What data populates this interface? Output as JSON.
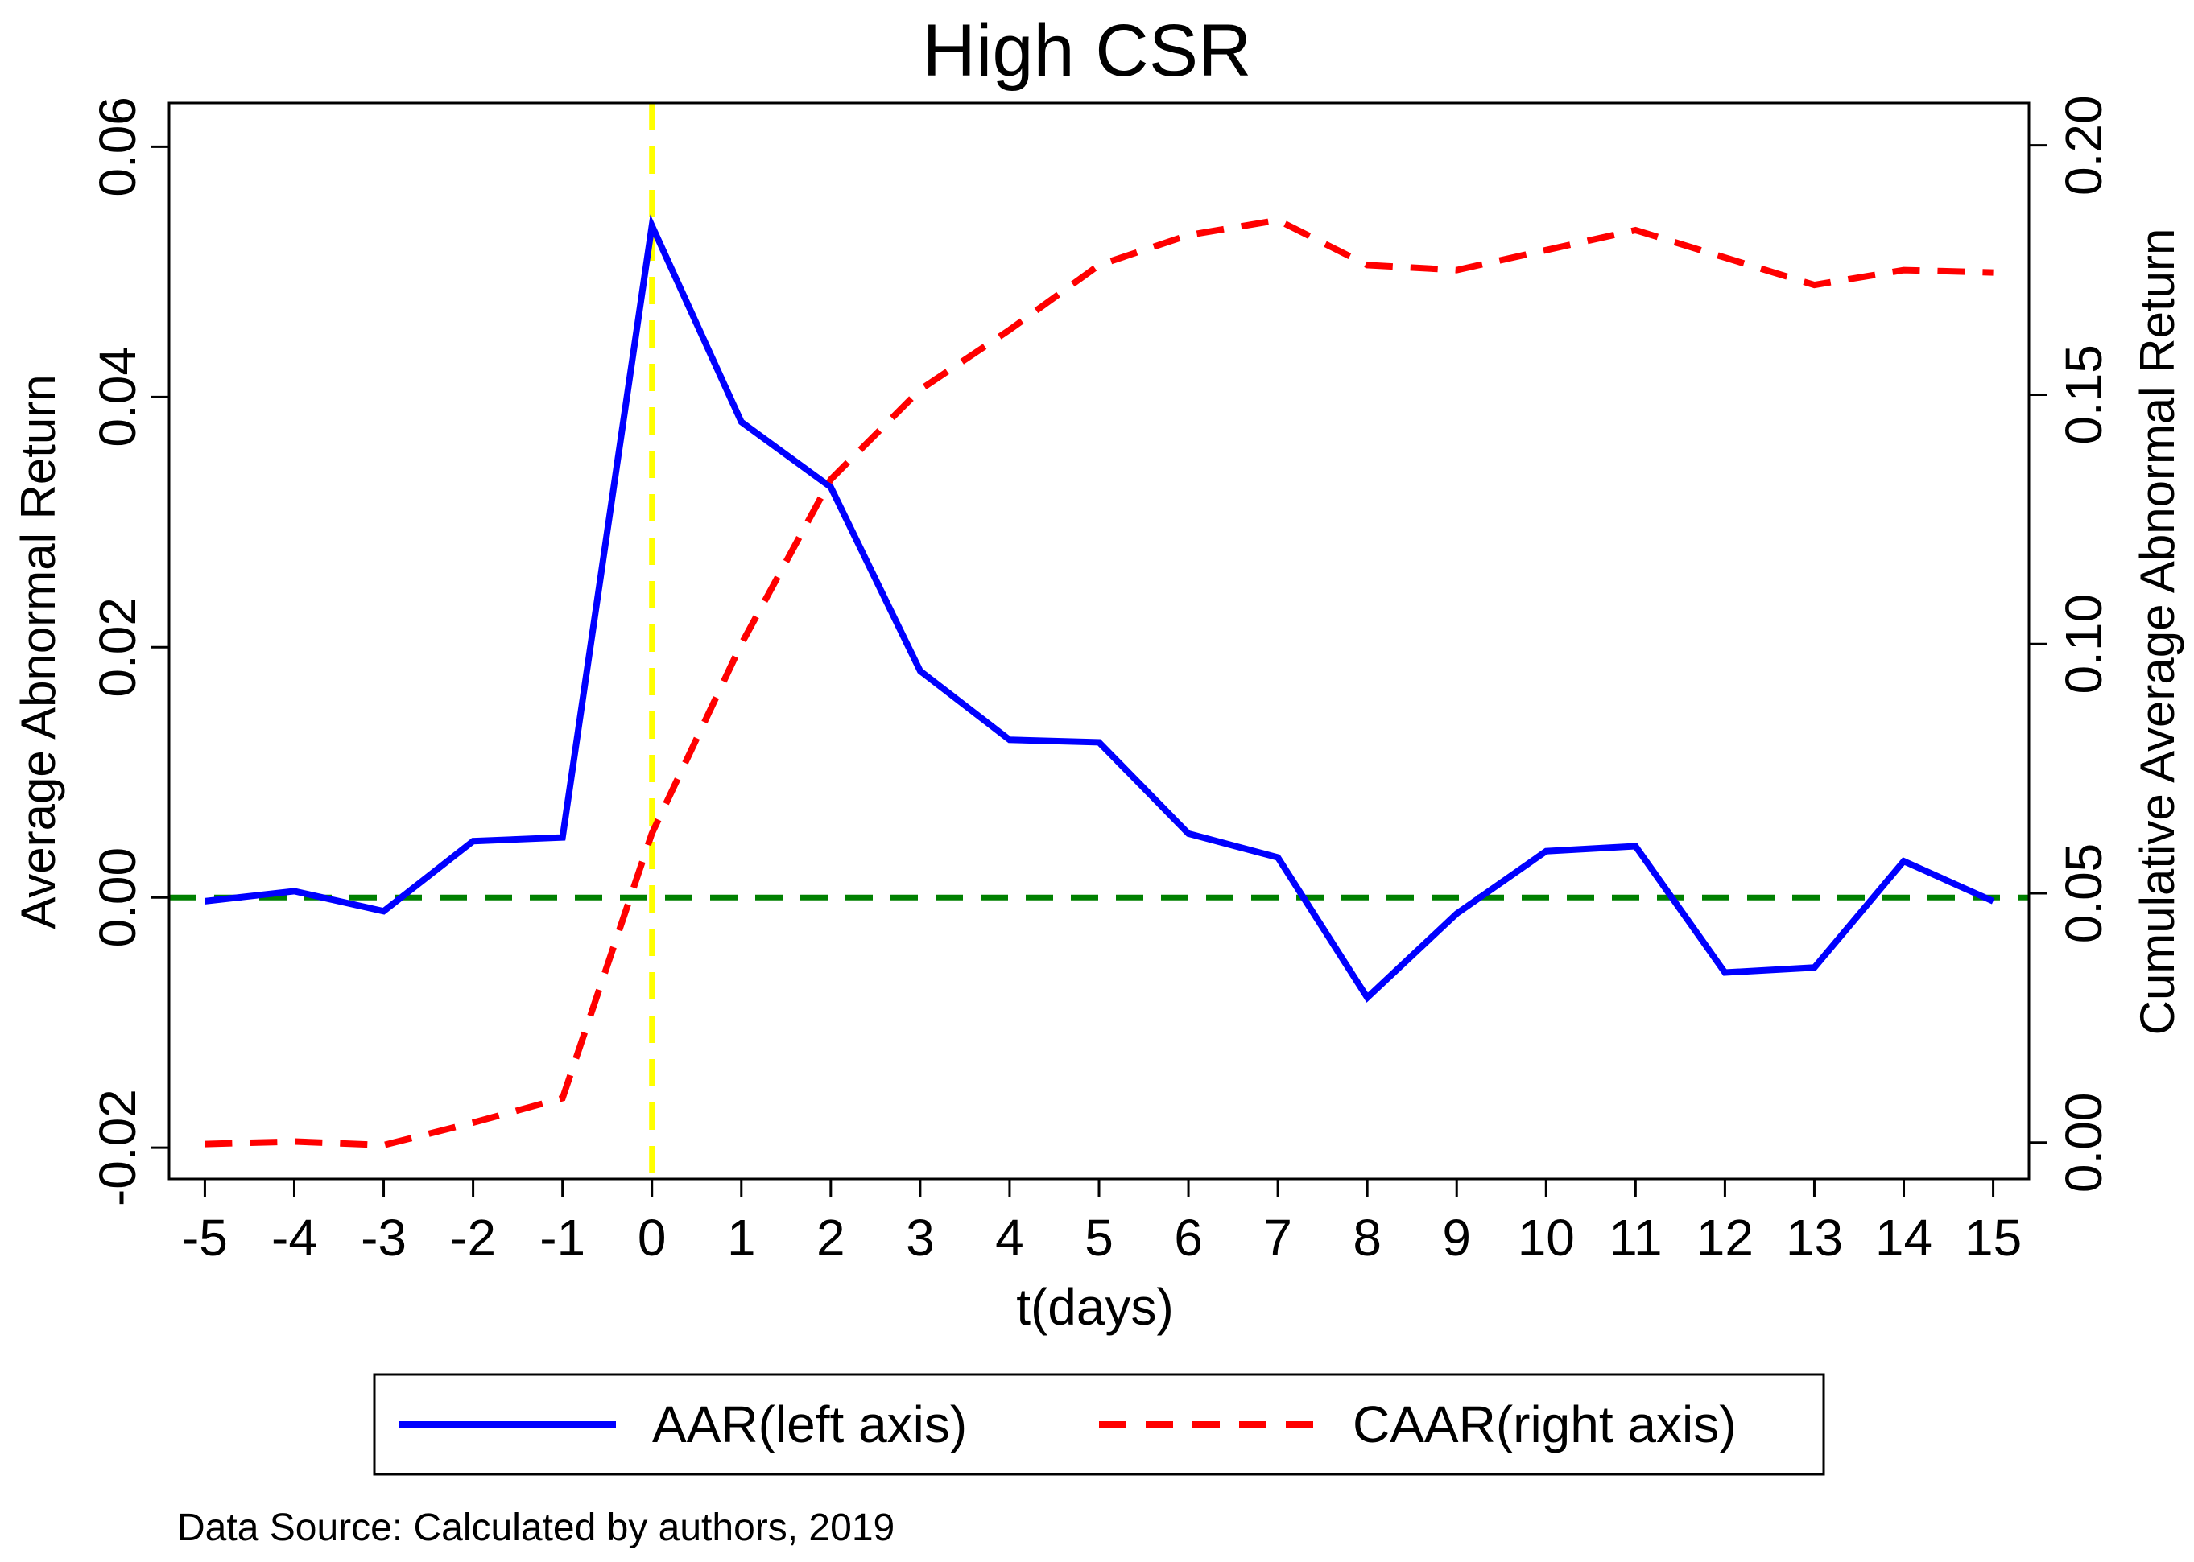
{
  "chart_data": {
    "type": "line",
    "title": "High CSR",
    "xlabel": "t(days)",
    "ylabel_left": "Average Abnormal Return",
    "ylabel_right": "Cumulative Average Abnormal Return",
    "x": [
      -5,
      -4,
      -3,
      -2,
      -1,
      0,
      1,
      2,
      3,
      4,
      5,
      6,
      7,
      8,
      9,
      10,
      11,
      12,
      13,
      14,
      15
    ],
    "x_ticks": [
      "-5",
      "-4",
      "-3",
      "-2",
      "-1",
      "0",
      "1",
      "2",
      "3",
      "4",
      "5",
      "6",
      "7",
      "8",
      "9",
      "10",
      "11",
      "12",
      "13",
      "14",
      "15"
    ],
    "xlim": [
      -5.4,
      15.4
    ],
    "ylim_left": [
      -0.0225,
      0.0635
    ],
    "ylim_right": [
      -0.0073,
      0.2085
    ],
    "yticks_left": [
      "-0.02",
      "0.00",
      "0.02",
      "0.04",
      "0.06"
    ],
    "yticks_left_values": [
      -0.02,
      0.0,
      0.02,
      0.04,
      0.06
    ],
    "yticks_right": [
      "0.00",
      "0.05",
      "0.10",
      "0.15",
      "0.20"
    ],
    "yticks_right_values": [
      0.0,
      0.05,
      0.1,
      0.15,
      0.2
    ],
    "series": [
      {
        "name": "AAR(left axis)",
        "axis": "left",
        "color": "#0000ff",
        "style": "solid",
        "values": [
          -0.0003,
          0.0005,
          -0.0011,
          0.0045,
          0.0048,
          0.0537,
          0.038,
          0.0328,
          0.0181,
          0.0126,
          0.0124,
          0.0051,
          0.0032,
          -0.008,
          -0.0013,
          0.0037,
          0.0041,
          -0.006,
          -0.0056,
          0.0029,
          -0.0003
        ]
      },
      {
        "name": "CAAR(right axis)",
        "axis": "right",
        "color": "#ff0000",
        "style": "dashed",
        "values": [
          -0.0003,
          0.0002,
          -0.0005,
          0.004,
          0.0089,
          0.062,
          0.1,
          0.133,
          0.151,
          0.163,
          0.176,
          0.182,
          0.185,
          0.176,
          0.175,
          0.179,
          0.183,
          0.1775,
          0.172,
          0.175,
          0.1745
        ]
      }
    ],
    "reference_lines": [
      {
        "type": "horizontal",
        "axis": "left",
        "value": 0.0,
        "color": "#008000",
        "style": "dashed"
      },
      {
        "type": "vertical",
        "value": 0,
        "color": "#ffff00",
        "style": "dashed"
      }
    ],
    "legend": {
      "position": "bottom",
      "entries": [
        "AAR(left axis)",
        "CAAR(right axis)"
      ]
    },
    "note": "Data Source: Calculated by authors, 2019"
  }
}
